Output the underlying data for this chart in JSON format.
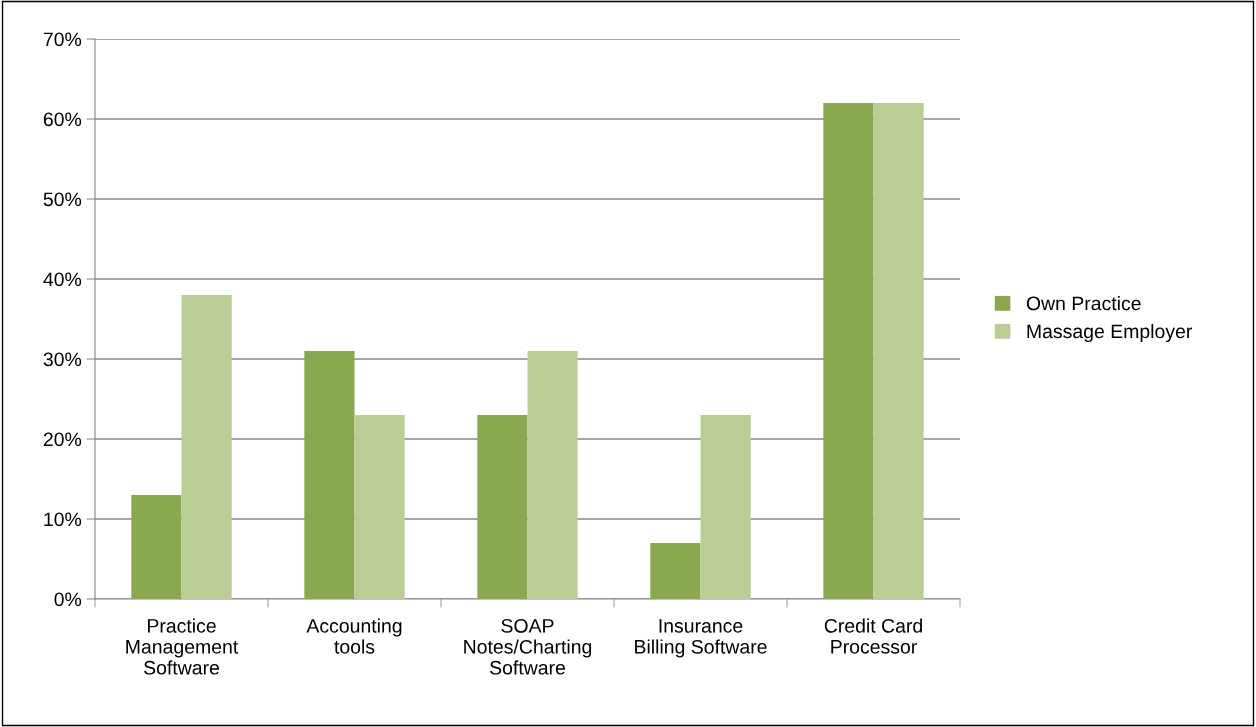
{
  "chart_data": {
    "type": "bar",
    "categories": [
      "Practice\nManagement\nSoftware",
      "Accounting\ntools",
      "SOAP\nNotes/Charting\nSoftware",
      "Insurance\nBilling Software",
      "Credit Card\nProcessor"
    ],
    "series": [
      {
        "name": "Own Practice",
        "color": "#8aa84e",
        "values": [
          13,
          31,
          23,
          7,
          62
        ]
      },
      {
        "name": "Massage Employer",
        "color": "#bacd95",
        "values": [
          38,
          23,
          31,
          23,
          62
        ]
      }
    ],
    "ylim": [
      0,
      70
    ],
    "yticks": [
      {
        "value": 0,
        "label": "0%"
      },
      {
        "value": 10,
        "label": "10%"
      },
      {
        "value": 20,
        "label": "20%"
      },
      {
        "value": 30,
        "label": "30%"
      },
      {
        "value": 40,
        "label": "40%"
      },
      {
        "value": 50,
        "label": "50%"
      },
      {
        "value": 60,
        "label": "60%"
      },
      {
        "value": 70,
        "label": "70%"
      }
    ],
    "grid": "y",
    "legend": "right"
  }
}
